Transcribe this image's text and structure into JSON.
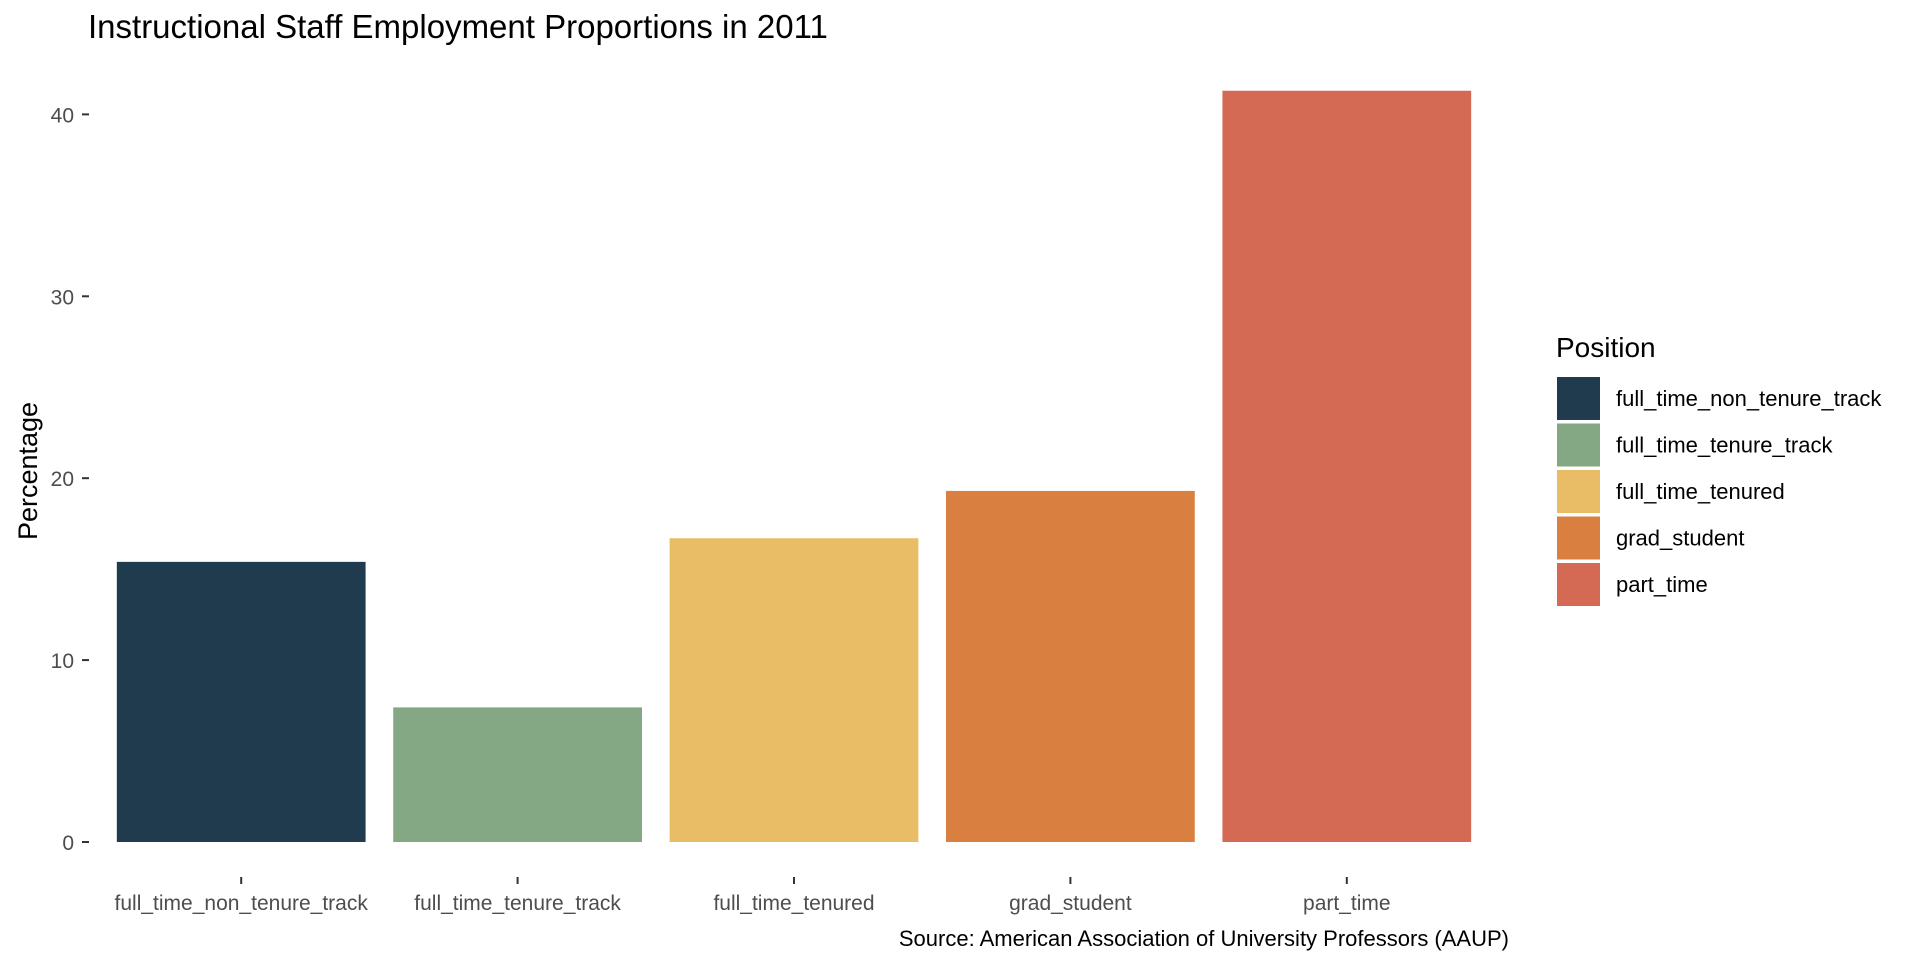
{
  "chart_data": {
    "type": "bar",
    "title": "Instructional Staff Employment Proportions in 2011",
    "xlabel": "",
    "ylabel": "Percentage",
    "caption": "Source: American Association of University Professors (AAUP)",
    "categories": [
      "full_time_non_tenure_track",
      "full_time_tenure_track",
      "full_time_tenured",
      "grad_student",
      "part_time"
    ],
    "values": [
      15.4,
      7.4,
      16.7,
      19.3,
      41.3
    ],
    "colors": [
      "#1f3b4d",
      "#84a883",
      "#e8bd66",
      "#d97f40",
      "#d56a54"
    ],
    "ylim": [
      0,
      42
    ],
    "yticks": [
      0,
      10,
      20,
      30,
      40
    ],
    "grid": false,
    "legend": {
      "title": "Position",
      "placement": "right",
      "entries": [
        "full_time_non_tenure_track",
        "full_time_tenure_track",
        "full_time_tenured",
        "grad_student",
        "part_time"
      ]
    }
  }
}
